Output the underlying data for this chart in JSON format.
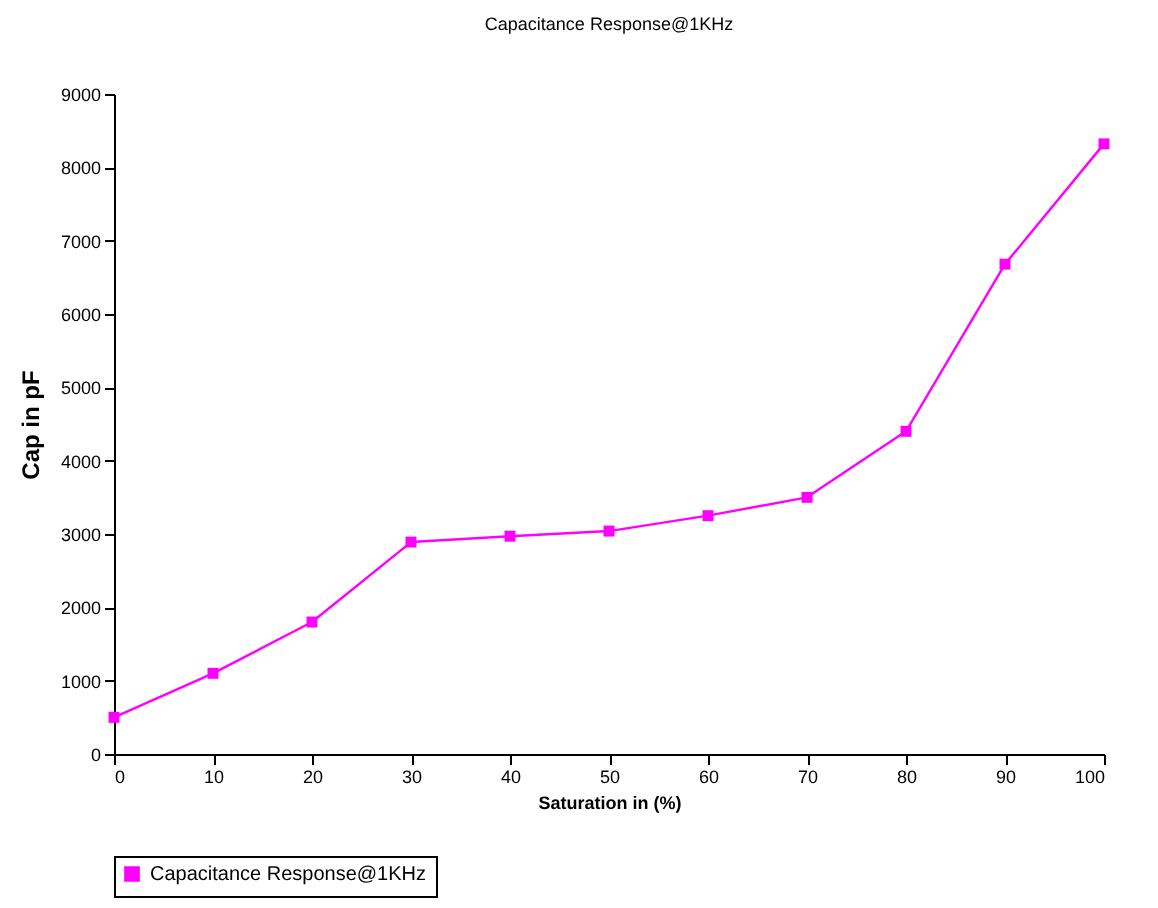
{
  "chart_data": {
    "type": "line",
    "title": "Capacitance Response@1KHz",
    "xlabel": "Saturation in (%)",
    "ylabel": "Cap in pF",
    "x": [
      0,
      10,
      20,
      30,
      40,
      50,
      60,
      70,
      80,
      90,
      100
    ],
    "series": [
      {
        "name": "Capacitance Response@1KHz",
        "color": "#ff00ff",
        "values": [
          500,
          1100,
          1800,
          2890,
          2970,
          3040,
          3250,
          3500,
          4400,
          6680,
          8320
        ]
      }
    ],
    "xlim": [
      0,
      100
    ],
    "xticks": [
      0,
      10,
      20,
      30,
      40,
      50,
      60,
      70,
      80,
      90,
      100
    ],
    "ylim": [
      0,
      9000
    ],
    "yticks": [
      0,
      1000,
      2000,
      3000,
      4000,
      5000,
      6000,
      7000,
      8000,
      9000
    ],
    "grid": false,
    "legend": "bottom",
    "marker": "square",
    "line_style": "solid"
  }
}
